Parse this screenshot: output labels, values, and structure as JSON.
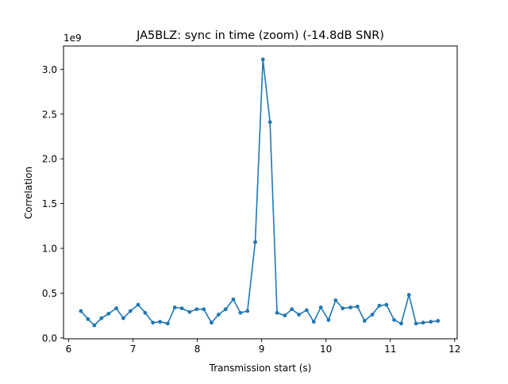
{
  "chart_data": {
    "type": "line",
    "title": "JA5BLZ: sync in time (zoom) (-14.8dB SNR)",
    "xlabel": "Transmission start (s)",
    "ylabel": "Correlation",
    "y_offset_label": "1e9",
    "xlim": [
      5.92,
      12.04
    ],
    "ylim": [
      -0.01,
      3.26
    ],
    "x_ticks": [
      6,
      7,
      8,
      9,
      10,
      11,
      12
    ],
    "x_tick_labels": [
      "6",
      "7",
      "8",
      "9",
      "10",
      "11",
      "12"
    ],
    "y_ticks": [
      0.0,
      0.5,
      1.0,
      1.5,
      2.0,
      2.5,
      3.0
    ],
    "y_tick_labels": [
      "0.0",
      "0.5",
      "1.0",
      "1.5",
      "2.0",
      "2.5",
      "3.0"
    ],
    "grid": false,
    "color": "#1f77b4",
    "marker": "circle",
    "series": [
      {
        "x": [
          6.19,
          6.3,
          6.4,
          6.51,
          6.62,
          6.74,
          6.85,
          6.96,
          7.08,
          7.19,
          7.31,
          7.42,
          7.54,
          7.65,
          7.76,
          7.88,
          7.99,
          8.1,
          8.22,
          8.33,
          8.44,
          8.56,
          8.67,
          8.78,
          8.9,
          9.02,
          9.13,
          9.24,
          9.36,
          9.47,
          9.58,
          9.7,
          9.81,
          9.92,
          10.04,
          10.15,
          10.26,
          10.38,
          10.49,
          10.6,
          10.72,
          10.83,
          10.94,
          11.06,
          11.17,
          11.29,
          11.4,
          11.51,
          11.63,
          11.74
        ],
        "y": [
          0.3,
          0.21,
          0.14,
          0.22,
          0.27,
          0.33,
          0.22,
          0.3,
          0.37,
          0.28,
          0.17,
          0.18,
          0.16,
          0.34,
          0.33,
          0.29,
          0.32,
          0.32,
          0.17,
          0.26,
          0.32,
          0.43,
          0.28,
          0.3,
          1.07,
          3.11,
          2.41,
          0.28,
          0.25,
          0.32,
          0.26,
          0.31,
          0.18,
          0.34,
          0.2,
          0.42,
          0.33,
          0.34,
          0.35,
          0.19,
          0.26,
          0.36,
          0.37,
          0.2,
          0.16,
          0.48,
          0.16,
          0.17,
          0.18,
          0.19
        ]
      }
    ]
  }
}
